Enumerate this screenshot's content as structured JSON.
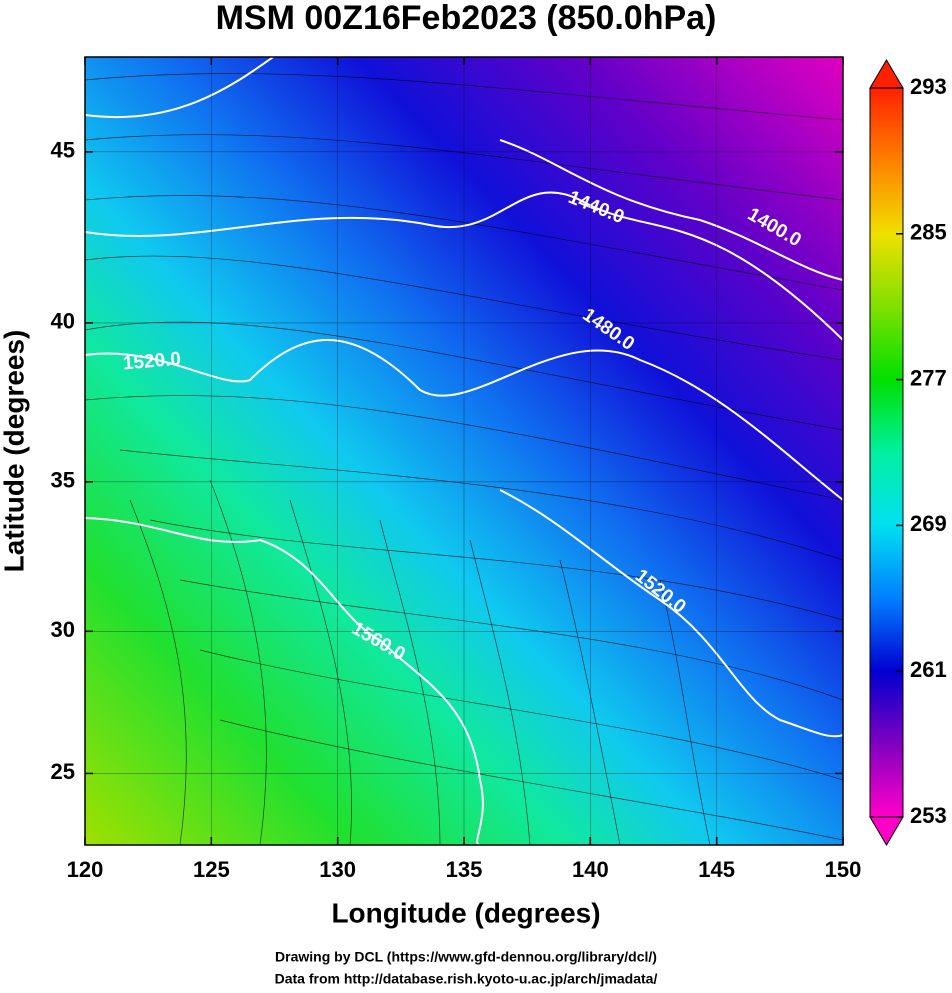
{
  "chart_data": {
    "type": "map",
    "title": "MSM 00Z16Feb2023 (850.0hPa)",
    "x_label": "Longitude (degrees)",
    "y_label": "Latitude  (degrees)",
    "projection": "mercator",
    "xlim": [
      120,
      150
    ],
    "xticks": [
      120,
      125,
      130,
      135,
      140,
      145,
      150
    ],
    "ylim": [
      22.4,
      47.6
    ],
    "yticks": [
      25,
      30,
      35,
      40,
      45
    ],
    "colorbar": {
      "lim": [
        253,
        293
      ],
      "ticks": [
        253,
        261,
        269,
        277,
        285,
        293
      ]
    },
    "contour_labels": [
      "1440.0",
      "1400.0",
      "1480.0",
      "1520.0",
      "1520.0",
      "1560.0"
    ],
    "footer": [
      "Drawing by DCL (https://www.gfd-dennou.org/library/dcl/)",
      "Data from http://database.rish.kyoto-u.ac.jp/arch/jmadata/"
    ]
  }
}
